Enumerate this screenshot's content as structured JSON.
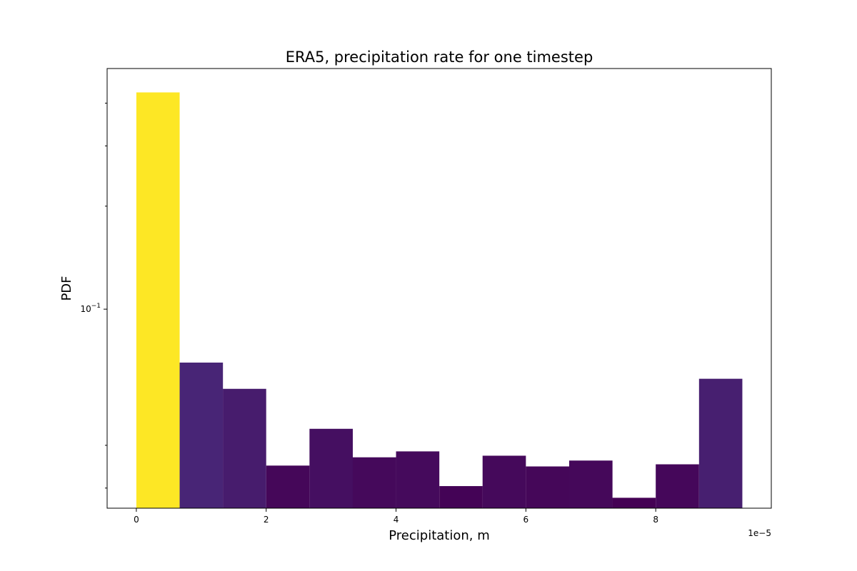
{
  "chart_data": {
    "type": "bar",
    "title": "ERA5, precipitation rate for one timestep",
    "xlabel": "Precipitation, m",
    "ylabel": "PDF",
    "x_offset_label": "1e−5",
    "x_ticks": [
      {
        "value": 0,
        "label": "0"
      },
      {
        "value": 2,
        "label": "2"
      },
      {
        "value": 4,
        "label": "4"
      },
      {
        "value": 6,
        "label": "6"
      },
      {
        "value": 8,
        "label": "8"
      }
    ],
    "y_scale": "log",
    "y_major_ticks": [
      {
        "value": 0.1,
        "base": "10",
        "exponent": "−1"
      }
    ],
    "y_minor_ticks": [
      0.03,
      0.04,
      0.2,
      0.3,
      0.4
    ],
    "xlim": [
      -0.45,
      9.78
    ],
    "ylim": [
      0.0262,
      0.505
    ],
    "bin_width": 0.667,
    "bins": [
      {
        "start": 0.0,
        "value": 0.43
      },
      {
        "start": 0.667,
        "value": 0.0698
      },
      {
        "start": 1.333,
        "value": 0.0585
      },
      {
        "start": 2.0,
        "value": 0.0349
      },
      {
        "start": 2.667,
        "value": 0.0447
      },
      {
        "start": 3.333,
        "value": 0.0369
      },
      {
        "start": 4.0,
        "value": 0.0384
      },
      {
        "start": 4.667,
        "value": 0.0304
      },
      {
        "start": 5.333,
        "value": 0.0373
      },
      {
        "start": 6.0,
        "value": 0.0347
      },
      {
        "start": 6.667,
        "value": 0.0361
      },
      {
        "start": 7.333,
        "value": 0.0281
      },
      {
        "start": 8.0,
        "value": 0.0352
      },
      {
        "start": 8.667,
        "value": 0.0626
      }
    ],
    "colormap": "viridis",
    "grid": false,
    "legend": "none"
  }
}
